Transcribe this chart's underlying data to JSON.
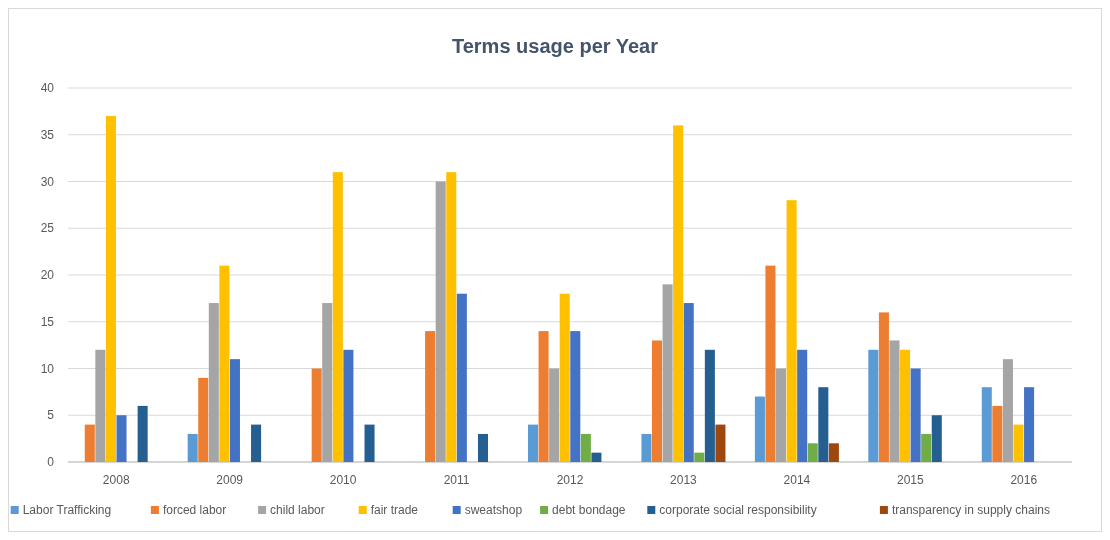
{
  "chart_data": {
    "type": "bar",
    "title": "Terms usage per Year",
    "categories": [
      "2008",
      "2009",
      "2010",
      "2011",
      "2012",
      "2013",
      "2014",
      "2015",
      "2016"
    ],
    "series": [
      {
        "name": "Labor Trafficking",
        "color": "#5b9bd5",
        "values": [
          null,
          3,
          null,
          null,
          4,
          3,
          7,
          12,
          8
        ]
      },
      {
        "name": "forced labor",
        "color": "#ed7d31",
        "values": [
          4,
          9,
          10,
          14,
          14,
          13,
          21,
          16,
          6
        ]
      },
      {
        "name": "child labor",
        "color": "#a5a5a5",
        "values": [
          12,
          17,
          17,
          30,
          10,
          19,
          10,
          13,
          11
        ]
      },
      {
        "name": "fair trade",
        "color": "#ffc000",
        "values": [
          37,
          21,
          31,
          31,
          18,
          36,
          28,
          12,
          4
        ]
      },
      {
        "name": "sweatshop",
        "color": "#4472c4",
        "values": [
          5,
          11,
          12,
          18,
          14,
          17,
          12,
          10,
          8
        ]
      },
      {
        "name": "debt bondage",
        "color": "#70ad47",
        "values": [
          null,
          null,
          null,
          null,
          3,
          1,
          2,
          3,
          null
        ]
      },
      {
        "name": "corporate social responsibility",
        "color": "#255e91",
        "values": [
          6,
          4,
          4,
          3,
          1,
          12,
          8,
          5,
          null
        ]
      },
      {
        "name": "transparency in supply chains",
        "color": "#9e480e",
        "values": [
          null,
          null,
          null,
          null,
          null,
          4,
          2,
          null,
          null
        ]
      }
    ],
    "ylim": [
      0,
      40
    ],
    "yticks": [
      0,
      5,
      10,
      15,
      20,
      25,
      30,
      35,
      40
    ],
    "grid": "y",
    "legend": "bottom"
  }
}
